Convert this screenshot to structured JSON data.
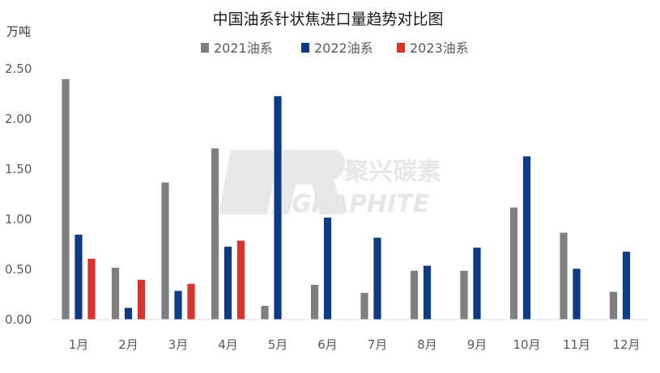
{
  "chart_data": {
    "type": "bar",
    "title": "中国油系针状焦进口量趋势对比图",
    "ylabel": "万吨",
    "xlabel": "",
    "categories": [
      "1月",
      "2月",
      "3月",
      "4月",
      "5月",
      "6月",
      "7月",
      "8月",
      "9月",
      "10月",
      "11月",
      "12月"
    ],
    "series": [
      {
        "name": "2021油系",
        "color": "#7f7f7f",
        "values": [
          2.4,
          0.52,
          1.37,
          1.71,
          0.14,
          0.35,
          0.27,
          0.49,
          0.49,
          1.12,
          0.87,
          0.28
        ]
      },
      {
        "name": "2022油系",
        "color": "#0e3a86",
        "values": [
          0.85,
          0.12,
          0.29,
          0.73,
          2.23,
          1.02,
          0.82,
          0.54,
          0.72,
          1.63,
          0.51,
          0.68
        ]
      },
      {
        "name": "2023油系",
        "color": "#d9342b",
        "values": [
          0.61,
          0.4,
          0.36,
          0.79,
          null,
          null,
          null,
          null,
          null,
          null,
          null,
          null
        ]
      }
    ],
    "ylim": [
      0,
      2.5
    ],
    "yticks": [
      "0.00",
      "0.50",
      "1.00",
      "1.50",
      "2.00",
      "2.50"
    ],
    "grid": false,
    "legend_position": "top"
  },
  "watermark": {
    "logo_text": "聚兴碳素",
    "sub_text": "GRAPHITE"
  }
}
